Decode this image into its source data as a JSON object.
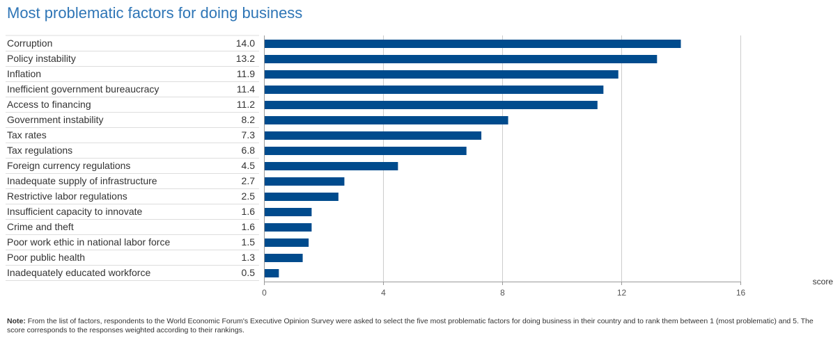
{
  "title": "Most problematic factors for doing business",
  "note": {
    "label": "Note:",
    "text": "From the list of factors, respondents to the World Economic Forum's Executive Opinion Survey were asked to select the five most problematic factors for doing business in their country and to rank them between 1 (most problematic) and 5. The score corresponds to the responses weighted according to their rankings."
  },
  "colors": {
    "bar": "#004b8d",
    "grid": "#cccccc",
    "row_line": "#dddddd",
    "title": "#2e75b6"
  },
  "chart_data": {
    "type": "bar",
    "orientation": "horizontal",
    "categories": [
      "Corruption",
      "Policy instability",
      "Inflation",
      "Inefficient government bureaucracy",
      "Access to financing",
      "Government instability",
      "Tax rates",
      "Tax regulations",
      "Foreign currency regulations",
      "Inadequate supply of infrastructure",
      "Restrictive labor regulations",
      "Insufficient capacity to innovate",
      "Crime and theft",
      "Poor work ethic in national labor force",
      "Poor public health",
      "Inadequately educated workforce"
    ],
    "values": [
      14.0,
      13.2,
      11.9,
      11.4,
      11.2,
      8.2,
      7.3,
      6.8,
      4.5,
      2.7,
      2.5,
      1.6,
      1.6,
      1.5,
      1.3,
      0.5
    ],
    "value_labels": [
      "14.0",
      "13.2",
      "11.9",
      "11.4",
      "11.2",
      "8.2",
      "7.3",
      "6.8",
      "4.5",
      "2.7",
      "2.5",
      "1.6",
      "1.6",
      "1.5",
      "1.3",
      "0.5"
    ],
    "xlabel": "score",
    "xlim": [
      0,
      16
    ],
    "xticks": [
      0,
      4,
      8,
      12,
      16
    ],
    "xtick_labels": [
      "0",
      "4",
      "8",
      "12",
      "16"
    ],
    "grid": true
  }
}
